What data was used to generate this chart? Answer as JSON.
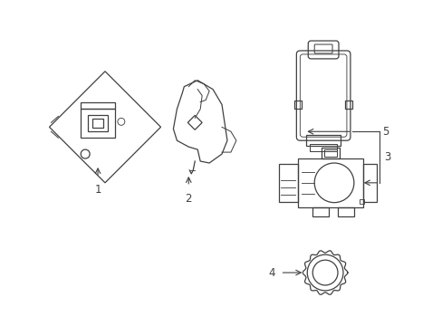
{
  "bg_color": "#ffffff",
  "line_color": "#404040",
  "label_color": "#000000",
  "figsize": [
    4.89,
    3.6
  ],
  "dpi": 100,
  "lw": 0.9
}
